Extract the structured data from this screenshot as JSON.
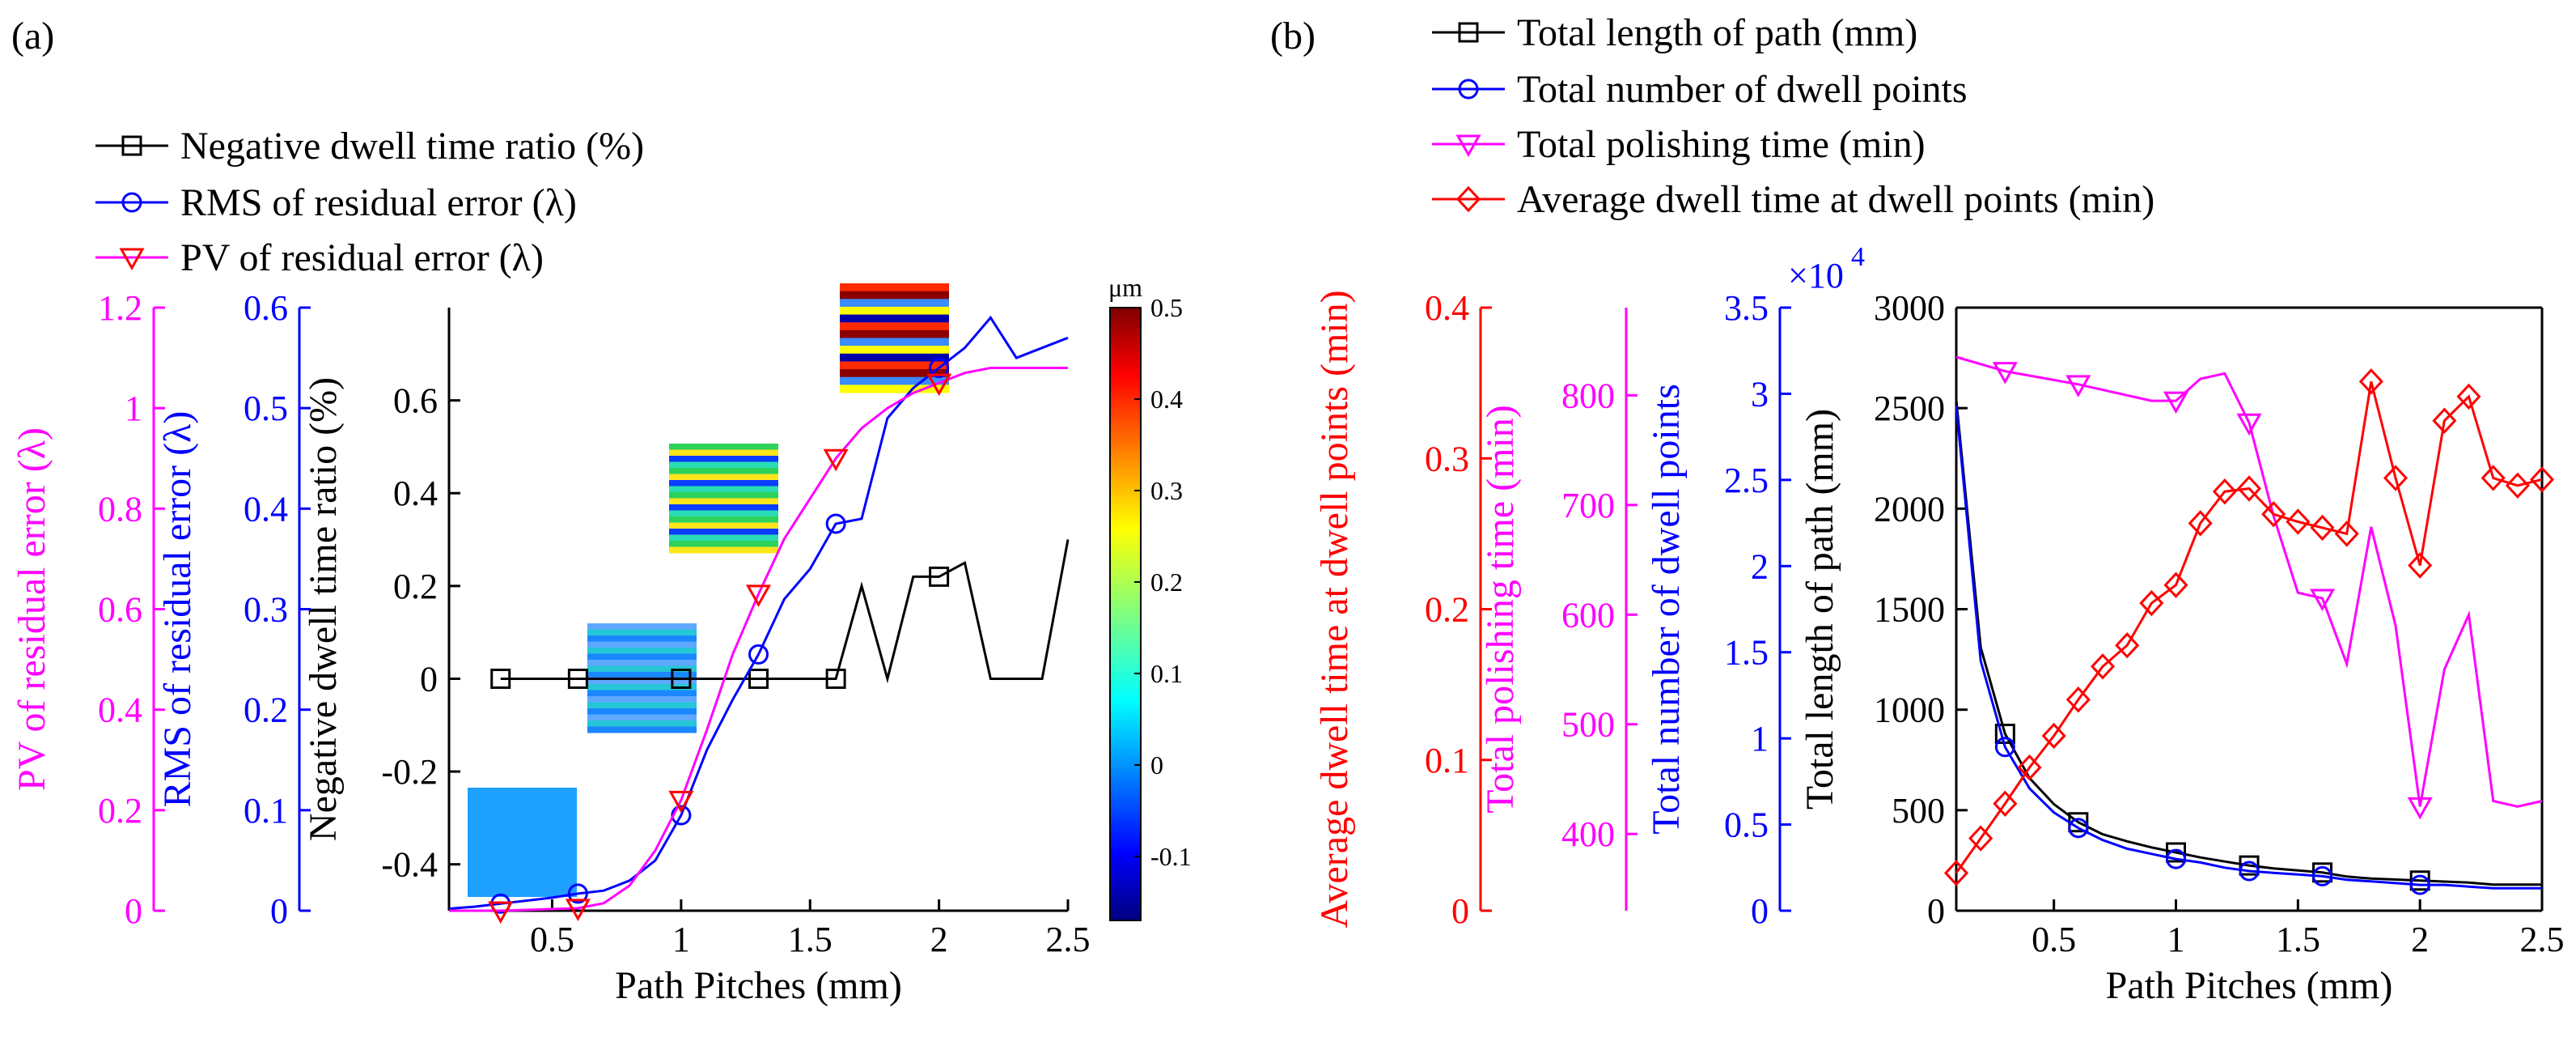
{
  "panel_labels": {
    "a": "(a)",
    "b": "(b)"
  },
  "chart_data": [
    {
      "type": "line",
      "panel": "(a)",
      "xlabel": "Path Pitches (mm)",
      "xlim": [
        0.1,
        2.5
      ],
      "xticks": [
        0.5,
        1,
        1.5,
        2,
        2.5
      ],
      "xtick_labels": [
        "0.5",
        "1",
        "1.5",
        "2",
        "2.5"
      ],
      "legend_location": "top-left, outside axes",
      "axes": [
        {
          "id": "ratio",
          "label": "Negative dwell time ratio (%)",
          "color": "#000000",
          "ylim": [
            -0.5,
            0.8
          ],
          "ticks": [
            -0.4,
            -0.2,
            0,
            0.2,
            0.4,
            0.6
          ],
          "tick_labels": [
            "-0.4",
            "-0.2",
            "0",
            "0.2",
            "0.4",
            "0.6"
          ]
        },
        {
          "id": "rms",
          "label": "RMS of residual error (λ)",
          "color": "#0000ff",
          "ylim": [
            0,
            0.6
          ],
          "ticks": [
            0,
            0.1,
            0.2,
            0.3,
            0.4,
            0.5,
            0.6
          ],
          "tick_labels": [
            "0",
            "0.1",
            "0.2",
            "0.3",
            "0.4",
            "0.5",
            "0.6"
          ]
        },
        {
          "id": "pv",
          "label": "PV of residual error (λ)",
          "color": "#ff00ff",
          "ylim": [
            0,
            1.2
          ],
          "ticks": [
            0,
            0.2,
            0.4,
            0.6,
            0.8,
            1,
            1.2
          ],
          "tick_labels": [
            "0",
            "0.2",
            "0.4",
            "0.6",
            "0.8",
            "1",
            "1.2"
          ]
        }
      ],
      "series": [
        {
          "name": "Negative dwell time ratio (%)",
          "axis": "ratio",
          "color": "#000000",
          "marker": "square",
          "x": [
            0.3,
            0.6,
            1.0,
            1.3,
            1.6,
            1.7,
            1.8,
            1.9,
            2.0,
            2.1,
            2.2,
            2.3,
            2.4,
            2.5
          ],
          "y": [
            0,
            0,
            0,
            0,
            0,
            0.2,
            0,
            0.22,
            0.22,
            0.25,
            0,
            0,
            0,
            0.3
          ],
          "marker_x": [
            0.3,
            0.6,
            1.0,
            1.3,
            1.6,
            2.0
          ],
          "marker_y": [
            0,
            0,
            0,
            0,
            0,
            0.22
          ]
        },
        {
          "name": "RMS of residual error (λ)",
          "axis": "rms",
          "color": "#0000ff",
          "marker": "circle",
          "x": [
            0.1,
            0.2,
            0.3,
            0.4,
            0.5,
            0.6,
            0.7,
            0.8,
            0.9,
            1.0,
            1.1,
            1.2,
            1.3,
            1.4,
            1.5,
            1.6,
            1.7,
            1.8,
            1.9,
            2.0,
            2.1,
            2.2,
            2.3,
            2.4,
            2.5
          ],
          "y": [
            0.002,
            0.004,
            0.007,
            0.01,
            0.013,
            0.017,
            0.02,
            0.03,
            0.05,
            0.095,
            0.16,
            0.21,
            0.255,
            0.31,
            0.34,
            0.385,
            0.39,
            0.49,
            0.52,
            0.54,
            0.56,
            0.59,
            0.55,
            0.56,
            0.57
          ],
          "marker_x": [
            0.3,
            0.6,
            1.0,
            1.3,
            1.6,
            2.0
          ],
          "marker_y": [
            0.007,
            0.017,
            0.095,
            0.255,
            0.385,
            0.54
          ]
        },
        {
          "name": "PV of residual error (λ)",
          "axis": "pv",
          "color": "#ff00ff",
          "marker": "triangle-down",
          "marker_color": "#ff0000",
          "x": [
            0.1,
            0.3,
            0.6,
            0.7,
            0.8,
            0.9,
            1.0,
            1.1,
            1.2,
            1.3,
            1.4,
            1.5,
            1.6,
            1.7,
            1.8,
            1.9,
            2.0,
            2.1,
            2.2,
            2.3,
            2.4,
            2.5
          ],
          "y": [
            0.0,
            0.0,
            0.005,
            0.015,
            0.05,
            0.12,
            0.22,
            0.36,
            0.51,
            0.63,
            0.74,
            0.82,
            0.9,
            0.96,
            1.0,
            1.03,
            1.05,
            1.07,
            1.08,
            1.08,
            1.08,
            1.08
          ],
          "marker_x": [
            0.3,
            0.6,
            1.0,
            1.3,
            1.6,
            2.0
          ],
          "marker_y": [
            0.0,
            0.005,
            0.22,
            0.63,
            0.9,
            1.05
          ]
        }
      ],
      "inset_maps": [
        {
          "pitch": 0.3,
          "pattern": "uniform"
        },
        {
          "pitch": 1.0,
          "pattern": "stripes-fine"
        },
        {
          "pitch": 1.5,
          "pattern": "stripes-medium"
        },
        {
          "pitch": 2.0,
          "pattern": "stripes-strong"
        }
      ],
      "colorbar": {
        "unit": "μm",
        "range": [
          -0.17,
          0.5
        ],
        "ticks": [
          0.5,
          0.4,
          0.3,
          0.2,
          0.1,
          0,
          -0.1
        ],
        "tick_labels": [
          "0.5",
          "0.4",
          "0.3",
          "0.2",
          "0.1",
          "0",
          "-0.1"
        ],
        "colormap": "jet"
      }
    },
    {
      "type": "line",
      "panel": "(b)",
      "xlabel": "Path Pitches (mm)",
      "xlim": [
        0.1,
        2.5
      ],
      "xticks": [
        0.5,
        1,
        1.5,
        2,
        2.5
      ],
      "xtick_labels": [
        "0.5",
        "1",
        "1.5",
        "2",
        "2.5"
      ],
      "legend_location": "top, outside axes",
      "axes": [
        {
          "id": "length",
          "label": "Total length of path (mm)",
          "color": "#000000",
          "ylim": [
            0,
            3000
          ],
          "ticks": [
            0,
            500,
            1000,
            1500,
            2000,
            2500,
            3000
          ],
          "tick_labels": [
            "0",
            "500",
            "1000",
            "1500",
            "2000",
            "2500",
            "3000"
          ]
        },
        {
          "id": "points",
          "label": "Total number of dwell points",
          "color": "#0000ff",
          "ylim": [
            0,
            3.5
          ],
          "ticks": [
            0,
            0.5,
            1,
            1.5,
            2,
            2.5,
            3,
            3.5
          ],
          "tick_labels": [
            "0",
            "0.5",
            "1",
            "1.5",
            "2",
            "2.5",
            "3",
            "3.5"
          ],
          "exponent": {
            "base": "×10",
            "power": "4"
          }
        },
        {
          "id": "time",
          "label": "Total polishing time (min)",
          "color": "#ff00ff",
          "ylim": [
            330,
            880
          ],
          "ticks": [
            400,
            500,
            600,
            700,
            800
          ],
          "tick_labels": [
            "400",
            "500",
            "600",
            "700",
            "800"
          ]
        },
        {
          "id": "avg",
          "label": "Average dwell time at dwell points (min)",
          "color": "#ff0000",
          "ylim": [
            0,
            0.4
          ],
          "ticks": [
            0,
            0.1,
            0.2,
            0.3,
            0.4
          ],
          "tick_labels": [
            "0",
            "0.1",
            "0.2",
            "0.3",
            "0.4"
          ]
        }
      ],
      "series": [
        {
          "name": "Total length of path (mm)",
          "axis": "length",
          "color": "#000000",
          "marker": "square",
          "x": [
            0.1,
            0.2,
            0.3,
            0.4,
            0.5,
            0.6,
            0.7,
            0.8,
            0.9,
            1.0,
            1.1,
            1.2,
            1.3,
            1.4,
            1.5,
            1.6,
            1.7,
            1.8,
            1.9,
            2.0,
            2.1,
            2.2,
            2.3,
            2.4,
            2.5
          ],
          "y": [
            2540,
            1310,
            880,
            660,
            530,
            440,
            380,
            345,
            315,
            290,
            265,
            245,
            225,
            210,
            200,
            190,
            170,
            160,
            155,
            150,
            145,
            140,
            130,
            130,
            130
          ],
          "marker_x": [
            0.3,
            0.6,
            1.0,
            1.3,
            1.6,
            2.0
          ],
          "marker_y": [
            880,
            440,
            290,
            225,
            190,
            150
          ]
        },
        {
          "name": "Total number of dwell points",
          "axis": "points",
          "color": "#0000ff",
          "marker": "circle",
          "x": [
            0.1,
            0.2,
            0.3,
            0.4,
            0.5,
            0.6,
            0.7,
            0.8,
            0.9,
            1.0,
            1.1,
            1.2,
            1.3,
            1.4,
            1.5,
            1.6,
            1.7,
            1.8,
            1.9,
            2.0,
            2.1,
            2.2,
            2.3,
            2.4,
            2.5
          ],
          "y": [
            2.93,
            1.45,
            0.95,
            0.71,
            0.57,
            0.48,
            0.41,
            0.36,
            0.33,
            0.3,
            0.28,
            0.25,
            0.23,
            0.22,
            0.21,
            0.2,
            0.18,
            0.17,
            0.16,
            0.15,
            0.15,
            0.14,
            0.13,
            0.13,
            0.13
          ],
          "marker_x": [
            0.3,
            0.6,
            1.0,
            1.3,
            1.6,
            2.0
          ],
          "marker_y": [
            0.95,
            0.48,
            0.3,
            0.23,
            0.2,
            0.15
          ]
        },
        {
          "name": "Total polishing time (min)",
          "axis": "time",
          "color": "#ff00ff",
          "marker": "triangle-down",
          "x": [
            0.1,
            0.3,
            0.6,
            0.9,
            1.0,
            1.1,
            1.2,
            1.3,
            1.4,
            1.5,
            1.6,
            1.7,
            1.8,
            1.9,
            2.0,
            2.1,
            2.2,
            2.3,
            2.4,
            2.5
          ],
          "y": [
            835,
            822,
            810,
            795,
            795,
            815,
            820,
            775,
            690,
            620,
            615,
            555,
            680,
            590,
            425,
            550,
            600,
            430,
            425,
            430
          ],
          "marker_x": [
            0.3,
            0.6,
            1.0,
            1.3,
            1.6,
            2.0
          ],
          "marker_y": [
            822,
            810,
            795,
            775,
            615,
            425
          ]
        },
        {
          "name": "Average dwell time at dwell points (min)",
          "axis": "avg",
          "color": "#ff0000",
          "marker": "diamond",
          "x": [
            0.1,
            0.2,
            0.3,
            0.4,
            0.5,
            0.6,
            0.7,
            0.8,
            0.9,
            1.0,
            1.1,
            1.2,
            1.3,
            1.4,
            1.5,
            1.6,
            1.7,
            1.8,
            1.9,
            2.0,
            2.1,
            2.2,
            2.3,
            2.4,
            2.5
          ],
          "y": [
            0.025,
            0.048,
            0.071,
            0.095,
            0.116,
            0.14,
            0.162,
            0.176,
            0.204,
            0.216,
            0.257,
            0.278,
            0.28,
            0.263,
            0.258,
            0.254,
            0.25,
            0.351,
            0.287,
            0.229,
            0.325,
            0.341,
            0.287,
            0.282,
            0.286
          ],
          "marker_x": [
            0.1,
            0.2,
            0.3,
            0.4,
            0.5,
            0.6,
            0.7,
            0.8,
            0.9,
            1.0,
            1.1,
            1.2,
            1.3,
            1.4,
            1.5,
            1.6,
            1.7,
            1.8,
            1.9,
            2.0,
            2.1,
            2.2,
            2.3,
            2.4,
            2.5
          ],
          "marker_y": [
            0.025,
            0.048,
            0.071,
            0.095,
            0.116,
            0.14,
            0.162,
            0.176,
            0.204,
            0.216,
            0.257,
            0.278,
            0.28,
            0.263,
            0.258,
            0.254,
            0.25,
            0.351,
            0.287,
            0.229,
            0.325,
            0.341,
            0.287,
            0.282,
            0.286
          ]
        }
      ]
    }
  ]
}
